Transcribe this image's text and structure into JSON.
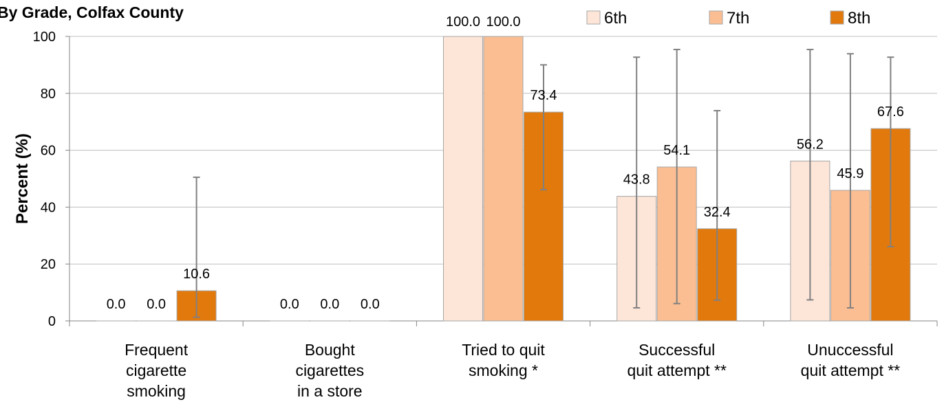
{
  "title": "By Grade, Colfax County",
  "chart_data": {
    "type": "bar",
    "title": "By Grade, Colfax County",
    "ylabel": "Percent (%)",
    "xlabel": "",
    "ylim": [
      0,
      100
    ],
    "yticks": [
      0,
      20,
      40,
      60,
      80,
      100
    ],
    "grid": true,
    "legend_position": "top-right",
    "categories": [
      [
        "Frequent",
        "cigarette",
        "smoking"
      ],
      [
        "Bought",
        "cigarettes",
        "in a store"
      ],
      [
        "Tried to quit",
        "smoking *"
      ],
      [
        "Successful",
        "quit attempt **"
      ],
      [
        "Unuccessful",
        "quit attempt **"
      ]
    ],
    "series": [
      {
        "name": "6th",
        "color": "#FDE5D8",
        "values": [
          0.0,
          0.0,
          100.0,
          43.8,
          56.2
        ],
        "labels": [
          "0.0",
          "0.0",
          "100.0",
          "43.8",
          "56.2"
        ],
        "ci_low": [
          null,
          null,
          null,
          4.6,
          7.4
        ],
        "ci_high": [
          null,
          null,
          null,
          92.7,
          95.4
        ]
      },
      {
        "name": "7th",
        "color": "#FBBE92",
        "values": [
          0.0,
          0.0,
          100.0,
          54.1,
          45.9
        ],
        "labels": [
          "0.0",
          "0.0",
          "100.0",
          "54.1",
          "45.9"
        ],
        "ci_low": [
          null,
          null,
          null,
          6.1,
          4.6
        ],
        "ci_high": [
          null,
          null,
          null,
          95.4,
          93.9
        ]
      },
      {
        "name": "8th",
        "color": "#E2790C",
        "values": [
          10.6,
          0.0,
          73.4,
          32.4,
          67.6
        ],
        "labels": [
          "10.6",
          "0.0",
          "73.4",
          "32.4",
          "67.6"
        ],
        "ci_low": [
          1.3,
          null,
          46.1,
          7.3,
          26.1
        ],
        "ci_high": [
          50.5,
          null,
          90.0,
          73.9,
          92.7
        ]
      }
    ]
  }
}
